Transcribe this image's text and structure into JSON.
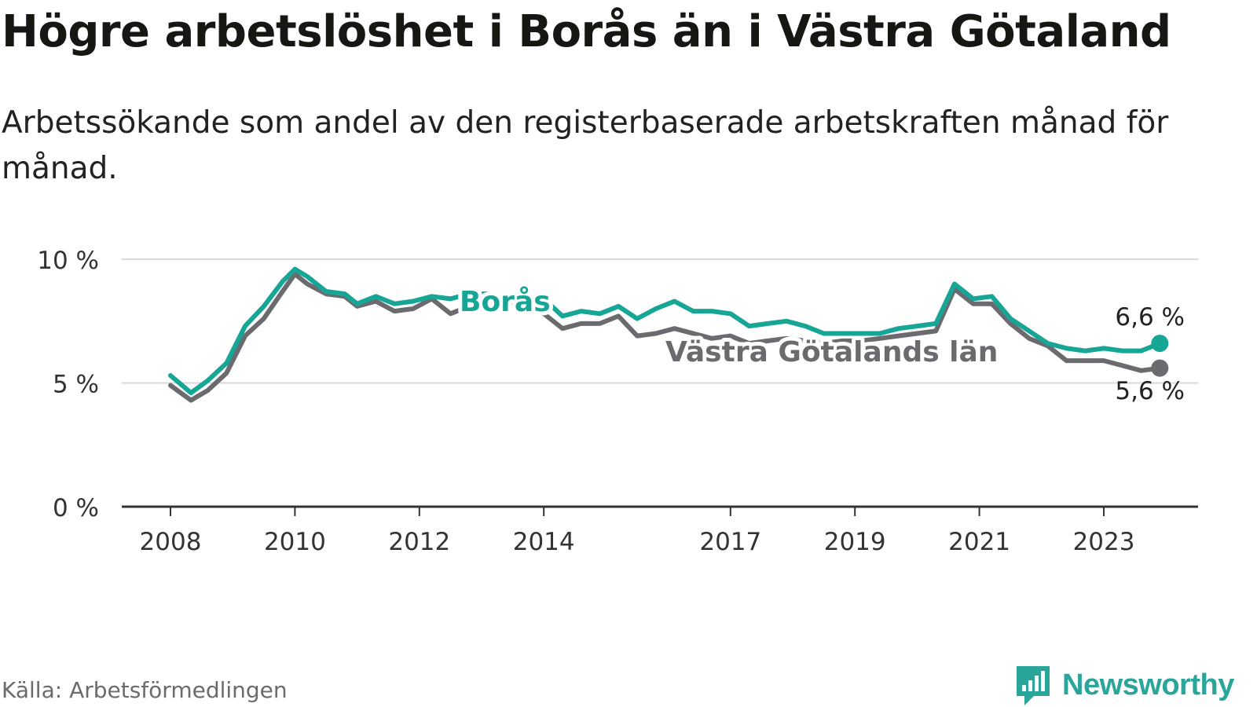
{
  "title": "Högre arbetslöshet i Borås än i Västra Götaland",
  "subtitle": "Arbetssökande som andel av den registerbaserade arbetskraften månad för månad.",
  "source": "Källa: Arbetsförmedlingen",
  "logo": {
    "name": "Newsworthy",
    "icon": "newsworthy-logo-icon",
    "color": "#2aa59a"
  },
  "chart_data": {
    "type": "line",
    "ylim": [
      0,
      10
    ],
    "y_ticks": [
      0,
      5,
      10
    ],
    "y_tick_labels": [
      "0 %",
      "5 %",
      "10 %"
    ],
    "x_range": [
      2007.2,
      2024.5
    ],
    "x_ticks": [
      2008,
      2010,
      2012,
      2014,
      2017,
      2019,
      2021,
      2023
    ],
    "x_tick_labels": [
      "2008",
      "2010",
      "2012",
      "2014",
      "2017",
      "2019",
      "2021",
      "2023"
    ],
    "grid": true,
    "series": [
      {
        "name": "Borås",
        "label": "Borås",
        "color": "#17a596",
        "end_label": "6,6 %",
        "x": [
          2008.0,
          2008.33,
          2008.6,
          2008.9,
          2009.2,
          2009.5,
          2009.8,
          2010.0,
          2010.2,
          2010.5,
          2010.8,
          2011.0,
          2011.3,
          2011.6,
          2011.9,
          2012.2,
          2012.5,
          2012.8,
          2013.1,
          2013.4,
          2013.7,
          2014.0,
          2014.3,
          2014.6,
          2014.9,
          2015.2,
          2015.5,
          2015.8,
          2016.1,
          2016.4,
          2016.7,
          2017.0,
          2017.3,
          2017.6,
          2017.9,
          2018.2,
          2018.5,
          2018.8,
          2019.1,
          2019.4,
          2019.7,
          2020.0,
          2020.3,
          2020.6,
          2020.9,
          2021.2,
          2021.5,
          2021.8,
          2022.1,
          2022.4,
          2022.7,
          2023.0,
          2023.3,
          2023.6,
          2023.9
        ],
        "values": [
          5.3,
          4.6,
          5.1,
          5.8,
          7.3,
          8.1,
          9.1,
          9.6,
          9.3,
          8.7,
          8.6,
          8.2,
          8.5,
          8.2,
          8.3,
          8.5,
          8.4,
          8.6,
          8.6,
          8.4,
          8.3,
          8.4,
          7.7,
          7.9,
          7.8,
          8.1,
          7.6,
          8.0,
          8.3,
          7.9,
          7.9,
          7.8,
          7.3,
          7.4,
          7.5,
          7.3,
          7.0,
          7.0,
          7.0,
          7.0,
          7.2,
          7.3,
          7.4,
          9.0,
          8.4,
          8.5,
          7.6,
          7.1,
          6.6,
          6.4,
          6.3,
          6.4,
          6.3,
          6.3,
          6.6
        ]
      },
      {
        "name": "Västra Götalands län",
        "label": "Västra Götalands län",
        "color": "#6b6b6f",
        "end_label": "5,6 %",
        "x": [
          2008.0,
          2008.33,
          2008.6,
          2008.9,
          2009.2,
          2009.5,
          2009.8,
          2010.0,
          2010.2,
          2010.5,
          2010.8,
          2011.0,
          2011.3,
          2011.6,
          2011.9,
          2012.2,
          2012.5,
          2012.8,
          2013.1,
          2013.4,
          2013.7,
          2014.0,
          2014.3,
          2014.6,
          2014.9,
          2015.2,
          2015.5,
          2015.8,
          2016.1,
          2016.4,
          2016.7,
          2017.0,
          2017.3,
          2017.6,
          2017.9,
          2018.2,
          2018.5,
          2018.8,
          2019.1,
          2019.4,
          2019.7,
          2020.0,
          2020.3,
          2020.6,
          2020.9,
          2021.2,
          2021.5,
          2021.8,
          2022.1,
          2022.4,
          2022.7,
          2023.0,
          2023.3,
          2023.6,
          2023.9
        ],
        "values": [
          4.9,
          4.3,
          4.7,
          5.4,
          6.9,
          7.6,
          8.7,
          9.4,
          9.0,
          8.6,
          8.5,
          8.1,
          8.3,
          7.9,
          8.0,
          8.4,
          7.8,
          8.1,
          8.3,
          8.2,
          8.0,
          7.8,
          7.2,
          7.4,
          7.4,
          7.7,
          6.9,
          7.0,
          7.2,
          7.0,
          6.8,
          6.9,
          6.6,
          6.7,
          6.8,
          6.7,
          6.6,
          6.7,
          6.7,
          6.8,
          6.9,
          7.0,
          7.1,
          8.8,
          8.2,
          8.2,
          7.4,
          6.8,
          6.5,
          5.9,
          5.9,
          5.9,
          5.7,
          5.5,
          5.6
        ]
      }
    ]
  }
}
